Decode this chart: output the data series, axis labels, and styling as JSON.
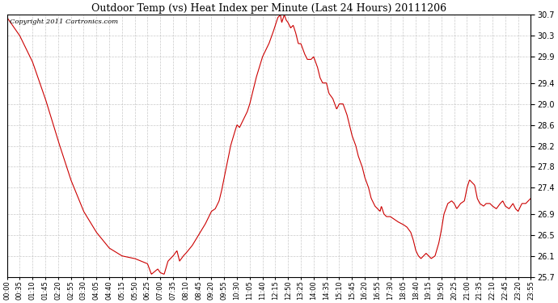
{
  "title": "Outdoor Temp (vs) Heat Index per Minute (Last 24 Hours) 20111206",
  "copyright_text": "Copyright 2011 Cartronics.com",
  "line_color": "#cc0000",
  "background_color": "#ffffff",
  "plot_bg_color": "#ffffff",
  "grid_color": "#bbbbbb",
  "ylim": [
    25.7,
    30.7
  ],
  "yticks": [
    25.7,
    26.1,
    26.5,
    26.9,
    27.4,
    27.8,
    28.2,
    28.6,
    29.0,
    29.4,
    29.9,
    30.3,
    30.7
  ],
  "xtick_labels": [
    "00:00",
    "00:35",
    "01:10",
    "01:45",
    "02:20",
    "02:55",
    "03:30",
    "04:05",
    "04:40",
    "05:15",
    "05:50",
    "06:25",
    "07:00",
    "07:35",
    "08:10",
    "08:45",
    "09:20",
    "09:55",
    "10:30",
    "11:05",
    "11:40",
    "12:15",
    "12:50",
    "13:25",
    "14:00",
    "14:35",
    "15:10",
    "15:45",
    "16:20",
    "16:55",
    "17:30",
    "18:05",
    "18:40",
    "19:15",
    "19:50",
    "20:25",
    "21:00",
    "21:35",
    "22:10",
    "22:45",
    "23:20",
    "23:55"
  ],
  "keypoints": [
    [
      0,
      30.65
    ],
    [
      1,
      30.3
    ],
    [
      2,
      29.8
    ],
    [
      3,
      29.1
    ],
    [
      4,
      28.3
    ],
    [
      5,
      27.55
    ],
    [
      6,
      26.95
    ],
    [
      7,
      26.55
    ],
    [
      8,
      26.25
    ],
    [
      9,
      26.1
    ],
    [
      10,
      26.05
    ],
    [
      11,
      25.95
    ],
    [
      11.3,
      25.75
    ],
    [
      11.8,
      25.85
    ],
    [
      12,
      25.78
    ],
    [
      12.3,
      25.75
    ],
    [
      12.6,
      26.0
    ],
    [
      13,
      26.1
    ],
    [
      13.3,
      26.2
    ],
    [
      13.5,
      26.0
    ],
    [
      13.8,
      26.1
    ],
    [
      14,
      26.15
    ],
    [
      14.5,
      26.3
    ],
    [
      15,
      26.5
    ],
    [
      15.5,
      26.7
    ],
    [
      16,
      26.95
    ],
    [
      16.3,
      27.0
    ],
    [
      16.6,
      27.15
    ],
    [
      16.8,
      27.35
    ],
    [
      17,
      27.6
    ],
    [
      17.3,
      27.95
    ],
    [
      17.5,
      28.2
    ],
    [
      17.8,
      28.45
    ],
    [
      18,
      28.6
    ],
    [
      18.2,
      28.55
    ],
    [
      18.5,
      28.7
    ],
    [
      18.8,
      28.85
    ],
    [
      19,
      29.0
    ],
    [
      19.2,
      29.2
    ],
    [
      19.5,
      29.5
    ],
    [
      20,
      29.9
    ],
    [
      20.3,
      30.05
    ],
    [
      20.5,
      30.15
    ],
    [
      20.8,
      30.35
    ],
    [
      21,
      30.5
    ],
    [
      21.2,
      30.65
    ],
    [
      21.4,
      30.7
    ],
    [
      21.5,
      30.55
    ],
    [
      21.7,
      30.7
    ],
    [
      21.85,
      30.6
    ],
    [
      22,
      30.55
    ],
    [
      22.2,
      30.45
    ],
    [
      22.4,
      30.5
    ],
    [
      22.6,
      30.35
    ],
    [
      22.8,
      30.15
    ],
    [
      23,
      30.15
    ],
    [
      23.3,
      29.95
    ],
    [
      23.5,
      29.85
    ],
    [
      23.8,
      29.85
    ],
    [
      24,
      29.9
    ],
    [
      24.3,
      29.7
    ],
    [
      24.5,
      29.5
    ],
    [
      24.7,
      29.4
    ],
    [
      25,
      29.4
    ],
    [
      25.2,
      29.2
    ],
    [
      25.5,
      29.1
    ],
    [
      25.8,
      28.9
    ],
    [
      26,
      29.0
    ],
    [
      26.3,
      29.0
    ],
    [
      26.6,
      28.8
    ],
    [
      26.8,
      28.6
    ],
    [
      27,
      28.4
    ],
    [
      27.3,
      28.2
    ],
    [
      27.5,
      28.0
    ],
    [
      27.8,
      27.8
    ],
    [
      28,
      27.6
    ],
    [
      28.3,
      27.4
    ],
    [
      28.5,
      27.2
    ],
    [
      28.8,
      27.05
    ],
    [
      29,
      27.0
    ],
    [
      29.2,
      26.95
    ],
    [
      29.3,
      27.05
    ],
    [
      29.5,
      26.9
    ],
    [
      29.7,
      26.85
    ],
    [
      30,
      26.85
    ],
    [
      30.3,
      26.8
    ],
    [
      30.6,
      26.75
    ],
    [
      31,
      26.7
    ],
    [
      31.3,
      26.65
    ],
    [
      31.6,
      26.55
    ],
    [
      31.8,
      26.4
    ],
    [
      32,
      26.2
    ],
    [
      32.2,
      26.1
    ],
    [
      32.4,
      26.05
    ],
    [
      32.6,
      26.1
    ],
    [
      32.8,
      26.15
    ],
    [
      33,
      26.1
    ],
    [
      33.2,
      26.05
    ],
    [
      33.5,
      26.1
    ],
    [
      33.8,
      26.35
    ],
    [
      34,
      26.6
    ],
    [
      34.2,
      26.9
    ],
    [
      34.5,
      27.1
    ],
    [
      34.8,
      27.15
    ],
    [
      35,
      27.1
    ],
    [
      35.2,
      27.0
    ],
    [
      35.5,
      27.1
    ],
    [
      35.8,
      27.15
    ],
    [
      36,
      27.4
    ],
    [
      36.2,
      27.55
    ],
    [
      36.4,
      27.5
    ],
    [
      36.6,
      27.45
    ],
    [
      36.8,
      27.2
    ],
    [
      37,
      27.1
    ],
    [
      37.3,
      27.05
    ],
    [
      37.5,
      27.1
    ],
    [
      37.8,
      27.1
    ],
    [
      38,
      27.05
    ],
    [
      38.3,
      27.0
    ],
    [
      38.6,
      27.1
    ],
    [
      38.8,
      27.15
    ],
    [
      39,
      27.05
    ],
    [
      39.3,
      27.0
    ],
    [
      39.6,
      27.1
    ],
    [
      39.8,
      27.0
    ],
    [
      40,
      26.95
    ],
    [
      40.3,
      27.1
    ],
    [
      40.6,
      27.1
    ],
    [
      41,
      27.2
    ]
  ]
}
